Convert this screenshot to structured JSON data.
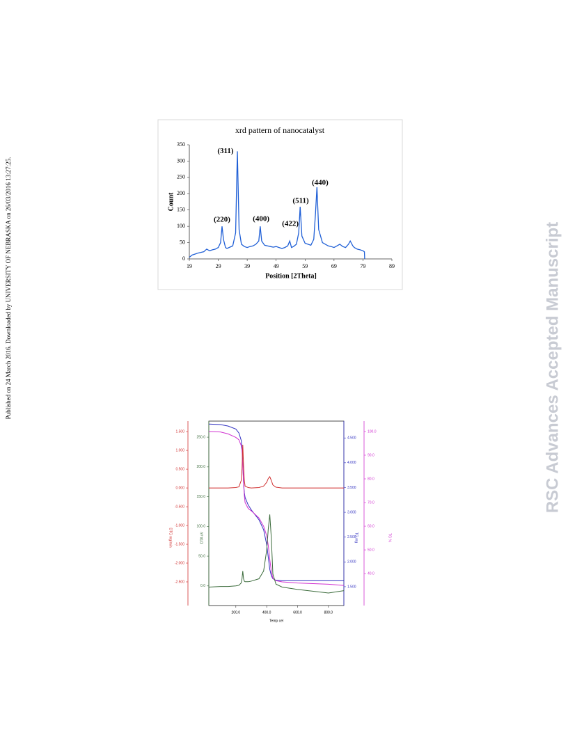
{
  "side_note": "Published on 24 March 2016. Downloaded by UNIVERSITY OF NEBRASKA on 26/03/2016 13:27:25.",
  "watermark": "RSC Advances Accepted Manuscript",
  "chart_data": [
    {
      "type": "line",
      "title": "xrd pattern of nanocatalyst",
      "x_label": "Position [2Theta]",
      "y_label": "Count",
      "x": [
        19,
        20,
        21,
        22,
        23,
        24,
        25,
        26,
        27,
        28,
        29,
        29.8,
        30.3,
        30.8,
        31.5,
        32,
        33,
        34,
        35,
        35.6,
        36.2,
        37,
        38,
        39,
        40,
        41,
        42,
        43,
        43.5,
        44,
        45,
        46,
        47,
        48,
        49,
        50,
        51,
        52,
        53,
        53.7,
        54.3,
        55,
        56,
        56.8,
        57.3,
        57.9,
        59,
        60,
        61,
        62,
        62.6,
        63.1,
        63.7,
        65,
        66,
        67,
        68,
        69,
        70,
        71,
        72,
        73,
        74,
        74.6,
        75.5,
        76,
        77,
        78,
        79,
        79.5,
        79.6
      ],
      "series": [
        {
          "color": "#1f5fd6",
          "values": [
            5,
            12,
            15,
            18,
            20,
            22,
            30,
            25,
            28,
            30,
            35,
            50,
            100,
            60,
            35,
            32,
            36,
            40,
            80,
            330,
            90,
            45,
            38,
            35,
            38,
            40,
            45,
            55,
            100,
            55,
            42,
            40,
            38,
            36,
            38,
            35,
            32,
            35,
            40,
            55,
            35,
            38,
            45,
            80,
            160,
            70,
            48,
            45,
            42,
            60,
            140,
            220,
            90,
            50,
            45,
            40,
            38,
            35,
            40,
            45,
            38,
            35,
            45,
            55,
            40,
            35,
            30,
            28,
            25,
            22,
            0
          ]
        }
      ],
      "annotations": [
        {
          "text": "(220)",
          "x": 30.3,
          "y": 120
        },
        {
          "text": "(311)",
          "x": 31.5,
          "y": 330
        },
        {
          "text": "(400)",
          "x": 43.8,
          "y": 122
        },
        {
          "text": "(422)",
          "x": 53.9,
          "y": 107
        },
        {
          "text": "(511)",
          "x": 57.5,
          "y": 177
        },
        {
          "text": "(440)",
          "x": 64.2,
          "y": 233
        }
      ],
      "xlim": [
        19,
        89
      ],
      "xticks": [
        19,
        29,
        39,
        49,
        59,
        69,
        79,
        89
      ],
      "ylim": [
        0,
        350
      ],
      "yticks": [
        0,
        50,
        100,
        150,
        200,
        250,
        300,
        350
      ]
    },
    {
      "type": "line",
      "x_label": "Temp cel",
      "x": [
        25,
        100,
        150,
        200,
        220,
        235,
        240,
        245,
        250,
        255,
        260,
        280,
        300,
        350,
        380,
        400,
        410,
        420,
        430,
        440,
        460,
        500,
        600,
        800,
        900
      ],
      "xlim": [
        25,
        900
      ],
      "xticks": [
        {
          "value": 200,
          "label": "200.0"
        },
        {
          "value": 400,
          "label": "400.0"
        },
        {
          "value": 600,
          "label": "600.0"
        },
        {
          "value": 800,
          "label": "800.0"
        }
      ],
      "y_axes": [
        {
          "title": "DTG mg/min",
          "color": "#d03030",
          "ylim": [
            -3.13,
            1.78
          ],
          "yticks": [
            {
              "value": 1.5,
              "label": "1.500"
            },
            {
              "value": 1,
              "label": "1.000"
            },
            {
              "value": 0.5,
              "label": "0.500"
            },
            {
              "value": 0,
              "label": "0.000"
            },
            {
              "value": -0.5,
              "label": "-0.500"
            },
            {
              "value": -1,
              "label": "-1.000"
            },
            {
              "value": -1.5,
              "label": "-1.500"
            },
            {
              "value": -2,
              "label": "-2.000"
            },
            {
              "value": -2.5,
              "label": "-2.500"
            }
          ]
        },
        {
          "title": "DTA uV",
          "color": "#3b6b3b",
          "ylim": [
            -33,
            277
          ],
          "yticks": [
            {
              "value": 0,
              "label": "0.0"
            },
            {
              "value": 50,
              "label": "50.0"
            },
            {
              "value": 100,
              "label": "100.0"
            },
            {
              "value": 150,
              "label": "150.0"
            },
            {
              "value": 200,
              "label": "200.0"
            },
            {
              "value": 250,
              "label": "250.0"
            }
          ]
        },
        {
          "title": "TG mg",
          "color": "#3030c0",
          "ylim": [
            1.12,
            4.84
          ],
          "yticks": [
            {
              "value": 1.5,
              "label": "1.500"
            },
            {
              "value": 2,
              "label": "2.000"
            },
            {
              "value": 2.5,
              "label": "2.500"
            },
            {
              "value": 3,
              "label": "3.000"
            },
            {
              "value": 3.5,
              "label": "3.500"
            },
            {
              "value": 4,
              "label": "4.000"
            },
            {
              "value": 4.5,
              "label": "4.500"
            }
          ]
        },
        {
          "title": "TG %",
          "color": "#d030d0",
          "ylim": [
            26.5,
            104.4
          ],
          "yticks": [
            {
              "value": 40,
              "label": "40.0"
            },
            {
              "value": 50,
              "label": "50.0"
            },
            {
              "value": 60,
              "label": "60.0"
            },
            {
              "value": 70,
              "label": "70.0"
            },
            {
              "value": 80,
              "label": "80.0"
            },
            {
              "value": 90,
              "label": "90.0"
            },
            {
              "value": 100,
              "label": "100.0"
            }
          ]
        }
      ],
      "series": [
        {
          "axis": 2,
          "color": "#3030c0",
          "values": [
            4.78,
            4.77,
            4.74,
            4.68,
            4.6,
            4.45,
            4.3,
            4.0,
            3.6,
            3.4,
            3.3,
            3.15,
            3.05,
            2.85,
            2.65,
            2.35,
            2.1,
            1.85,
            1.72,
            1.66,
            1.63,
            1.62,
            1.62,
            1.62,
            1.62
          ]
        },
        {
          "axis": 3,
          "color": "#d030d0",
          "values": [
            100,
            99.8,
            99,
            97.5,
            96.5,
            94,
            92,
            86,
            78,
            73,
            70,
            67.5,
            66.5,
            63.5,
            60,
            56,
            52,
            46,
            41,
            38,
            37,
            36.5,
            36,
            35.5,
            35
          ]
        },
        {
          "axis": 0,
          "color": "#d03030",
          "values": [
            0,
            0,
            0,
            0.01,
            0.03,
            0.2,
            0.5,
            1.15,
            0.6,
            0.2,
            0.05,
            0.01,
            0,
            0.01,
            0.05,
            0.15,
            0.25,
            0.3,
            0.2,
            0.08,
            0.02,
            0,
            0,
            0,
            0
          ]
        },
        {
          "axis": 1,
          "color": "#3b6b3b",
          "values": [
            -2,
            -1,
            -1,
            0,
            1,
            5,
            12,
            25,
            12,
            8,
            7,
            7,
            8,
            12,
            25,
            60,
            95,
            120,
            80,
            20,
            3,
            -2,
            -6,
            -12,
            -8
          ]
        }
      ]
    }
  ]
}
